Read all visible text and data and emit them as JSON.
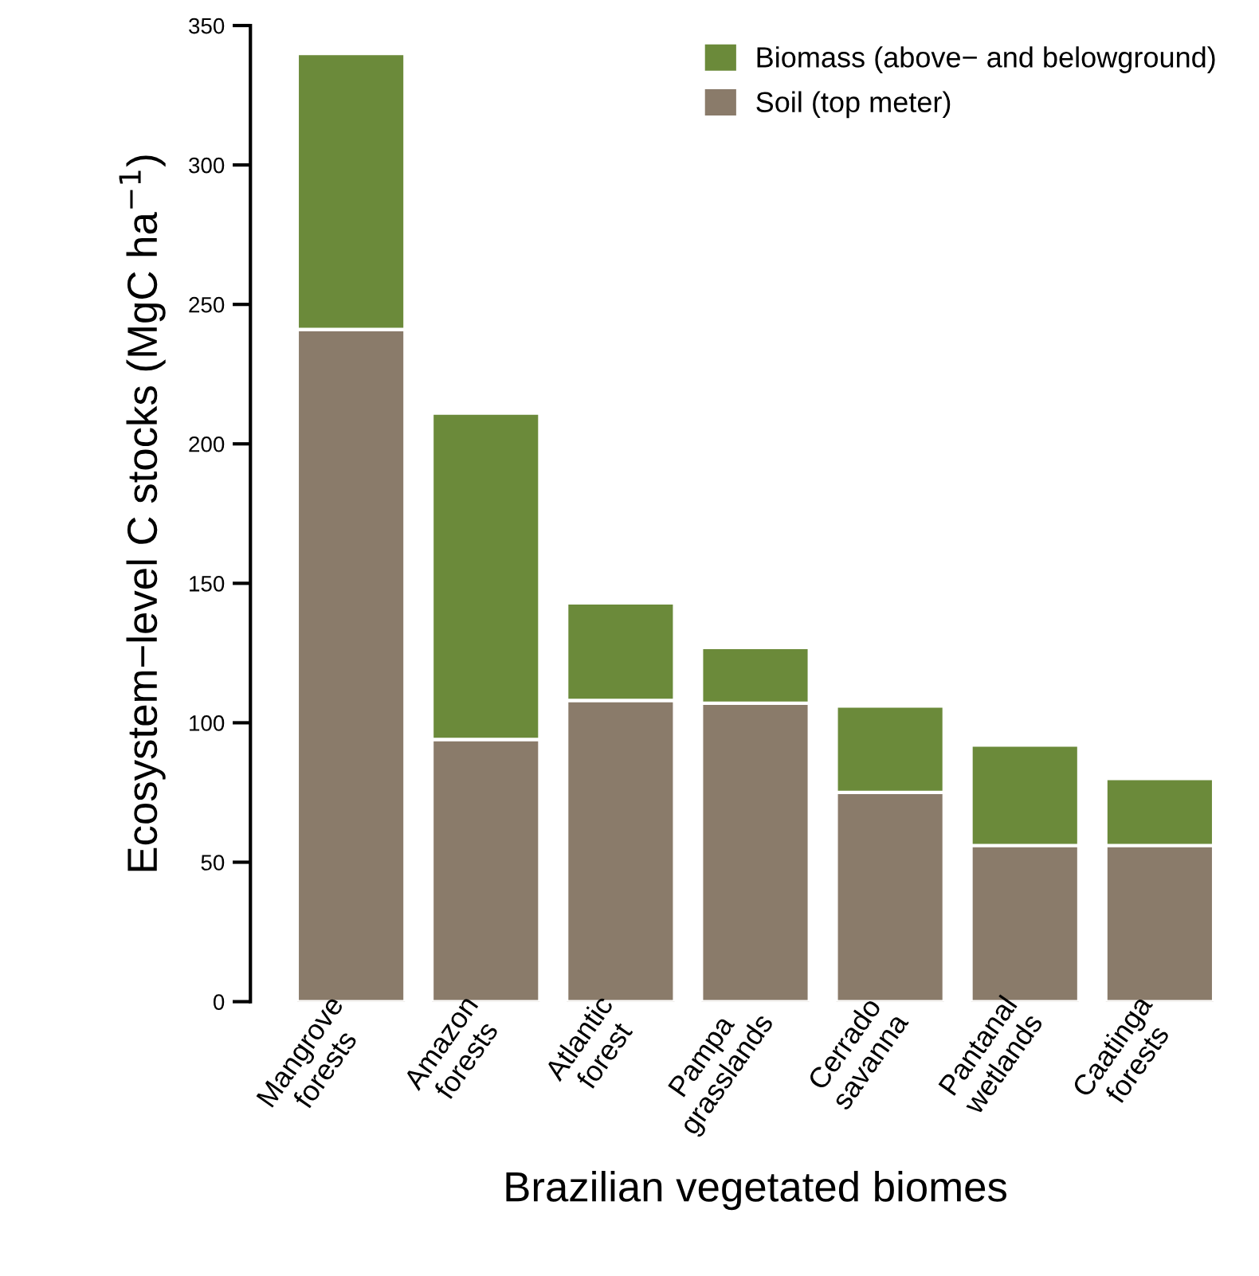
{
  "chart_data": {
    "type": "bar",
    "stacked": true,
    "xlabel": "Brazilian vegetated biomes",
    "ylabel": "Ecosystem−level C stocks (MgC ha$^{−1}$)",
    "categories": [
      "Mangrove\nforests",
      "Amazon\nforests",
      "Atlantic\nforest",
      "Pampa\ngrasslands",
      "Cerrado\nsavanna",
      "Pantanal\nwetlands",
      "Caatinga\nforests"
    ],
    "series": [
      {
        "name": "Soil (top meter)",
        "color": "#8a7b6a",
        "values": [
          241,
          94,
          108,
          107,
          75,
          56,
          56
        ]
      },
      {
        "name": "Biomass (above− and belowground)",
        "color": "#6b8a3a",
        "values": [
          99,
          117,
          35,
          20,
          31,
          36,
          24
        ]
      }
    ],
    "ylim": [
      0,
      350
    ],
    "yticks": [
      0,
      50,
      100,
      150,
      200,
      250,
      300,
      350
    ],
    "legend": "top right",
    "grid": false
  }
}
